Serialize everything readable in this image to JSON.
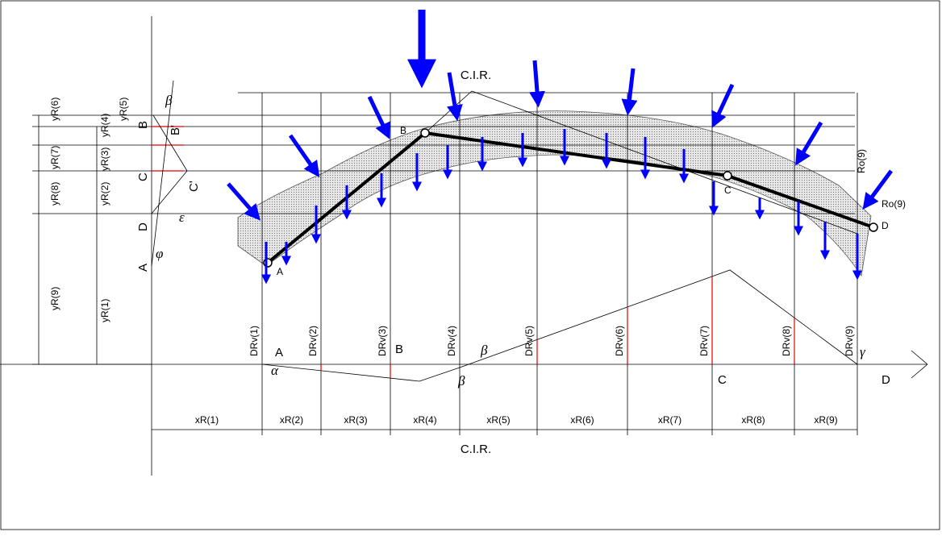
{
  "labels": {
    "cir_top": "C.I.R.",
    "cir_bottom": "C.I.R."
  },
  "arch_points": [
    "A",
    "B",
    "C",
    "D"
  ],
  "baseline_points": [
    "A",
    "B",
    "C",
    "D"
  ],
  "left_points": [
    "B",
    "C",
    "D",
    "A"
  ],
  "primed_points": [
    "B'",
    "C'"
  ],
  "yR": [
    "yR(1)",
    "yR(2)",
    "yR(3)",
    "yR(4)",
    "yR(5)",
    "yR(6)",
    "yR(7)",
    "yR(8)",
    "yR(9)"
  ],
  "xR": [
    "xR(1)",
    "xR(2)",
    "xR(3)",
    "xR(4)",
    "xR(5)",
    "xR(6)",
    "xR(7)",
    "xR(8)",
    "xR(9)"
  ],
  "DRv": [
    "DRv(1)",
    "DRv(2)",
    "DRv(3)",
    "DRv(4)",
    "DRv(5)",
    "DRv(6)",
    "DRv(7)",
    "DRv(8)",
    "DRv(9)"
  ],
  "Ro": [
    "Ro(9)",
    "Ro(9)"
  ],
  "angles": [
    "α",
    "β",
    "β",
    "β",
    "γ",
    "φ",
    "ε"
  ]
}
